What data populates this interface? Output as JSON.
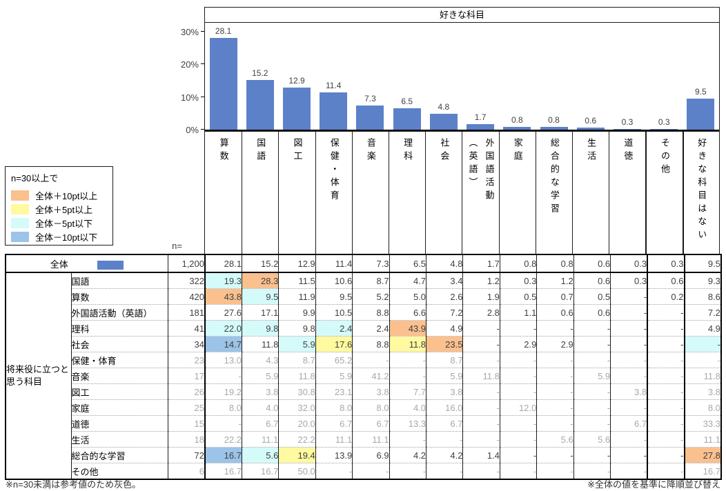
{
  "chart_data": {
    "type": "bar",
    "title": "好きな科目",
    "categories": [
      "算数",
      "国語",
      "図工",
      "保健・体育",
      "音楽",
      "理科",
      "社会",
      "外国語活動（英語）",
      "家庭",
      "総合的な学習",
      "生活",
      "道徳",
      "その他",
      "好きな科目はない"
    ],
    "category_display": [
      "算数",
      "国語",
      "図工",
      "保健・体育",
      "音楽",
      "理科",
      "社会",
      "外国語活動\n（英語）",
      "家庭",
      "総合的な学習",
      "生活",
      "道徳",
      "その他",
      "好きな科目はない"
    ],
    "values": [
      28.1,
      15.2,
      12.9,
      11.4,
      7.3,
      6.5,
      4.8,
      1.7,
      0.8,
      0.8,
      0.6,
      0.3,
      0.3,
      9.5
    ],
    "value_labels": [
      "28.1",
      "15.2",
      "12.9",
      "11.4",
      "7.3",
      "6.5",
      "4.8",
      "1.7",
      "0.8",
      "0.8",
      "0.6",
      "0.3",
      "0.3",
      "9.5"
    ],
    "ylim": [
      0,
      30
    ],
    "yticks": [
      {
        "label": "30%",
        "v": 30
      },
      {
        "label": "20%",
        "v": 20
      },
      {
        "label": "10%",
        "v": 10
      },
      {
        "label": "0%",
        "v": 0
      }
    ],
    "grid": false,
    "legend_position": "none"
  },
  "colors": {
    "bar": "#5c81c9",
    "o": "#fac08e",
    "y": "#fff9a0",
    "c": "#d5fafa",
    "b": "#9cc3e8",
    "grey_text": "#a8a8a8"
  },
  "legend": {
    "title": "n=30以上で",
    "items": [
      {
        "label": "全体＋10pt以上",
        "key": "o"
      },
      {
        "label": "全体＋5pt以上",
        "key": "y"
      },
      {
        "label": "全体－5pt以下",
        "key": "c"
      },
      {
        "label": "全体－10pt以下",
        "key": "b"
      }
    ]
  },
  "table": {
    "n_label": "n=",
    "group_label": "将来役に立つと思う科目",
    "total_row": {
      "label": "全体",
      "n": "1,200",
      "values": [
        "28.1",
        "15.2",
        "12.9",
        "11.4",
        "7.3",
        "6.5",
        "4.8",
        "1.7",
        "0.8",
        "0.8",
        "0.6",
        "0.3",
        "0.3",
        "9.5"
      ]
    },
    "rows": [
      {
        "label": "国語",
        "n": "322",
        "grey": false,
        "values": [
          "19.3",
          "28.3",
          "11.5",
          "10.6",
          "8.7",
          "4.7",
          "3.4",
          "1.2",
          "0.3",
          "1.2",
          "0.6",
          "0.3",
          "0.6",
          "9.3"
        ],
        "hl": [
          "c",
          "o",
          "",
          "",
          "",
          "",
          "",
          "",
          "",
          "",
          "",
          "",
          "",
          ""
        ]
      },
      {
        "label": "算数",
        "n": "420",
        "grey": false,
        "values": [
          "43.8",
          "9.5",
          "11.9",
          "9.5",
          "5.2",
          "5.0",
          "2.6",
          "1.9",
          "0.5",
          "0.7",
          "0.5",
          "-",
          "0.2",
          "8.6"
        ],
        "hl": [
          "o",
          "c",
          "",
          "",
          "",
          "",
          "",
          "",
          "",
          "",
          "",
          "",
          "",
          ""
        ]
      },
      {
        "label": "外国語活動（英語）",
        "n": "181",
        "grey": false,
        "values": [
          "27.6",
          "17.1",
          "9.9",
          "10.5",
          "8.8",
          "6.6",
          "7.2",
          "2.8",
          "1.1",
          "0.6",
          "0.6",
          "-",
          "-",
          "7.2"
        ],
        "hl": [
          "",
          "",
          "",
          "",
          "",
          "",
          "",
          "",
          "",
          "",
          "",
          "",
          "",
          ""
        ]
      },
      {
        "label": "理科",
        "n": "41",
        "grey": false,
        "values": [
          "22.0",
          "9.8",
          "9.8",
          "2.4",
          "2.4",
          "43.9",
          "4.9",
          "-",
          "-",
          "-",
          "-",
          "-",
          "-",
          "4.9"
        ],
        "hl": [
          "c",
          "c",
          "",
          "c",
          "",
          "o",
          "",
          "",
          "",
          "",
          "",
          "",
          "",
          ""
        ]
      },
      {
        "label": "社会",
        "n": "34",
        "grey": false,
        "values": [
          "14.7",
          "11.8",
          "5.9",
          "17.6",
          "8.8",
          "11.8",
          "23.5",
          "-",
          "2.9",
          "2.9",
          "-",
          "-",
          "-",
          "-"
        ],
        "hl": [
          "b",
          "",
          "c",
          "y",
          "",
          "y",
          "o",
          "",
          "",
          "",
          "",
          "",
          "",
          "c"
        ]
      },
      {
        "label": "保健・体育",
        "n": "23",
        "grey": true,
        "values": [
          "13.0",
          "4.3",
          "8.7",
          "65.2",
          "-",
          "-",
          "8.7",
          "-",
          "-",
          "-",
          "-",
          "-",
          "-",
          "-"
        ],
        "hl": [
          "",
          "",
          "",
          "",
          "",
          "",
          "",
          "",
          "",
          "",
          "",
          "",
          "",
          ""
        ]
      },
      {
        "label": "音楽",
        "n": "17",
        "grey": true,
        "values": [
          "-",
          "5.9",
          "11.8",
          "5.9",
          "41.2",
          "-",
          "5.9",
          "11.8",
          "-",
          "-",
          "5.9",
          "-",
          "-",
          "11.8"
        ],
        "hl": [
          "",
          "",
          "",
          "",
          "",
          "",
          "",
          "",
          "",
          "",
          "",
          "",
          "",
          ""
        ]
      },
      {
        "label": "図工",
        "n": "26",
        "grey": true,
        "values": [
          "19.2",
          "3.8",
          "30.8",
          "23.1",
          "3.8",
          "7.7",
          "3.8",
          "-",
          "-",
          "-",
          "-",
          "3.8",
          "-",
          "3.8"
        ],
        "hl": [
          "",
          "",
          "",
          "",
          "",
          "",
          "",
          "",
          "",
          "",
          "",
          "",
          "",
          ""
        ]
      },
      {
        "label": "家庭",
        "n": "25",
        "grey": true,
        "values": [
          "8.0",
          "4.0",
          "32.0",
          "8.0",
          "8.0",
          "4.0",
          "16.0",
          "-",
          "12.0",
          "-",
          "-",
          "-",
          "-",
          "8.0"
        ],
        "hl": [
          "",
          "",
          "",
          "",
          "",
          "",
          "",
          "",
          "",
          "",
          "",
          "",
          "",
          ""
        ]
      },
      {
        "label": "道徳",
        "n": "15",
        "grey": true,
        "values": [
          "-",
          "6.7",
          "20.0",
          "6.7",
          "6.7",
          "13.3",
          "6.7",
          "-",
          "-",
          "-",
          "-",
          "6.7",
          "-",
          "33.3"
        ],
        "hl": [
          "",
          "",
          "",
          "",
          "",
          "",
          "",
          "",
          "",
          "",
          "",
          "",
          "",
          ""
        ]
      },
      {
        "label": "生活",
        "n": "18",
        "grey": true,
        "values": [
          "22.2",
          "11.1",
          "22.2",
          "11.1",
          "11.1",
          "-",
          "-",
          "-",
          "-",
          "5.6",
          "5.6",
          "-",
          "-",
          "11.1"
        ],
        "hl": [
          "",
          "",
          "",
          "",
          "",
          "",
          "",
          "",
          "",
          "",
          "",
          "",
          "",
          ""
        ]
      },
      {
        "label": "総合的な学習",
        "n": "72",
        "grey": false,
        "values": [
          "16.7",
          "5.6",
          "19.4",
          "13.9",
          "6.9",
          "4.2",
          "4.2",
          "1.4",
          "-",
          "-",
          "-",
          "-",
          "-",
          "27.8"
        ],
        "hl": [
          "b",
          "c",
          "y",
          "",
          "",
          "",
          "",
          "",
          "",
          "",
          "",
          "",
          "",
          "o"
        ]
      },
      {
        "label": "その他",
        "n": "6",
        "grey": true,
        "values": [
          "16.7",
          "16.7",
          "50.0",
          "-",
          "-",
          "-",
          "-",
          "-",
          "-",
          "-",
          "-",
          "-",
          "-",
          "16.7"
        ],
        "hl": [
          "",
          "",
          "",
          "",
          "",
          "",
          "",
          "",
          "",
          "",
          "",
          "",
          "",
          ""
        ]
      }
    ]
  },
  "notes": {
    "left": "※n=30未満は参考値のため灰色。",
    "right": "※全体の値を基準に降順並び替え"
  }
}
